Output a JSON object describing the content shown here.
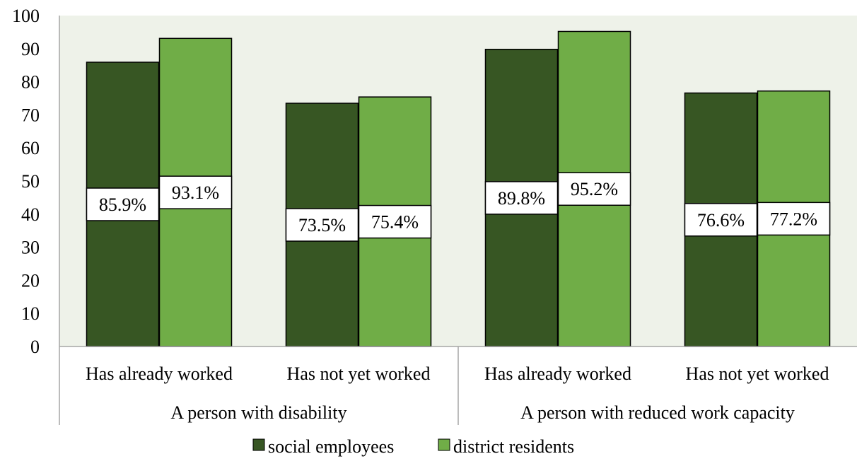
{
  "chart_data": {
    "type": "bar",
    "groups": [
      {
        "label": "A person with disability",
        "categories": [
          "Has already worked",
          "Has not yet worked"
        ]
      },
      {
        "label": "A person with reduced work capacity",
        "categories": [
          "Has already worked",
          "Has not yet worked"
        ]
      }
    ],
    "categories": [
      "Has already worked",
      "Has not yet worked",
      "Has already worked",
      "Has not yet worked"
    ],
    "series": [
      {
        "name": "social employees",
        "values": [
          85.9,
          73.5,
          89.8,
          76.6
        ],
        "labels": [
          "85.9%",
          "73.5%",
          "89.8%",
          "76.6%"
        ],
        "color": "#375623"
      },
      {
        "name": "district residents",
        "values": [
          93.1,
          75.4,
          95.2,
          77.2
        ],
        "labels": [
          "93.1%",
          "75.4%",
          "95.2%",
          "77.2%"
        ],
        "color": "#70ad47"
      }
    ],
    "ylim": [
      0,
      100
    ],
    "yticks": [
      0,
      10,
      20,
      30,
      40,
      50,
      60,
      70,
      80,
      90,
      100
    ],
    "yticklabels": [
      "0",
      "10",
      "20",
      "30",
      "40",
      "50",
      "60",
      "70",
      "80",
      "90",
      "100"
    ],
    "title": "",
    "xlabel": "",
    "ylabel": "",
    "grid": false,
    "plot_background": "#eef2e9",
    "legend": "bottom",
    "data_labels": "inside-middle-boxed"
  }
}
